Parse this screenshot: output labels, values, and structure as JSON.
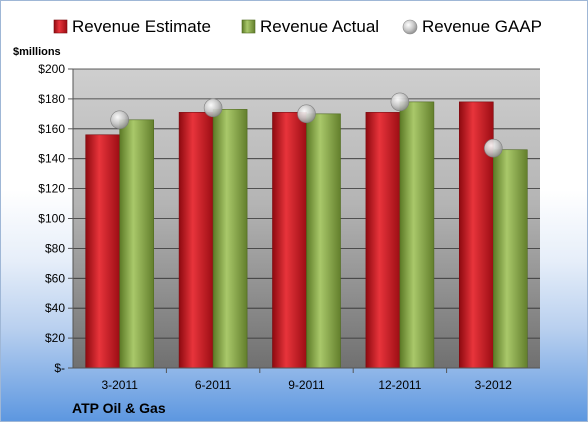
{
  "chart_data": {
    "type": "bar",
    "title": "",
    "ylabel": "$millions",
    "caption": "ATP Oil & Gas",
    "categories": [
      "3-2011",
      "6-2011",
      "9-2011",
      "12-2011",
      "3-2012"
    ],
    "series": [
      {
        "name": "Revenue Estimate",
        "kind": "bar",
        "color": "#d0141c",
        "values": [
          156,
          171,
          171,
          171,
          178
        ]
      },
      {
        "name": "Revenue Actual",
        "kind": "bar",
        "color": "#8fb04a",
        "values": [
          166,
          173,
          170,
          178,
          146
        ]
      },
      {
        "name": "Revenue GAAP",
        "kind": "marker",
        "color": "#c8c8c8",
        "values": [
          166,
          174,
          170,
          178,
          147
        ]
      }
    ],
    "ylim": [
      0,
      200
    ],
    "yticks": [
      0,
      20,
      40,
      60,
      80,
      100,
      120,
      140,
      160,
      180,
      200
    ],
    "ytick_labels": [
      "$-",
      "$20",
      "$40",
      "$60",
      "$80",
      "$100",
      "$120",
      "$140",
      "$160",
      "$180",
      "$200"
    ],
    "grid": true,
    "legend_position": "top"
  }
}
